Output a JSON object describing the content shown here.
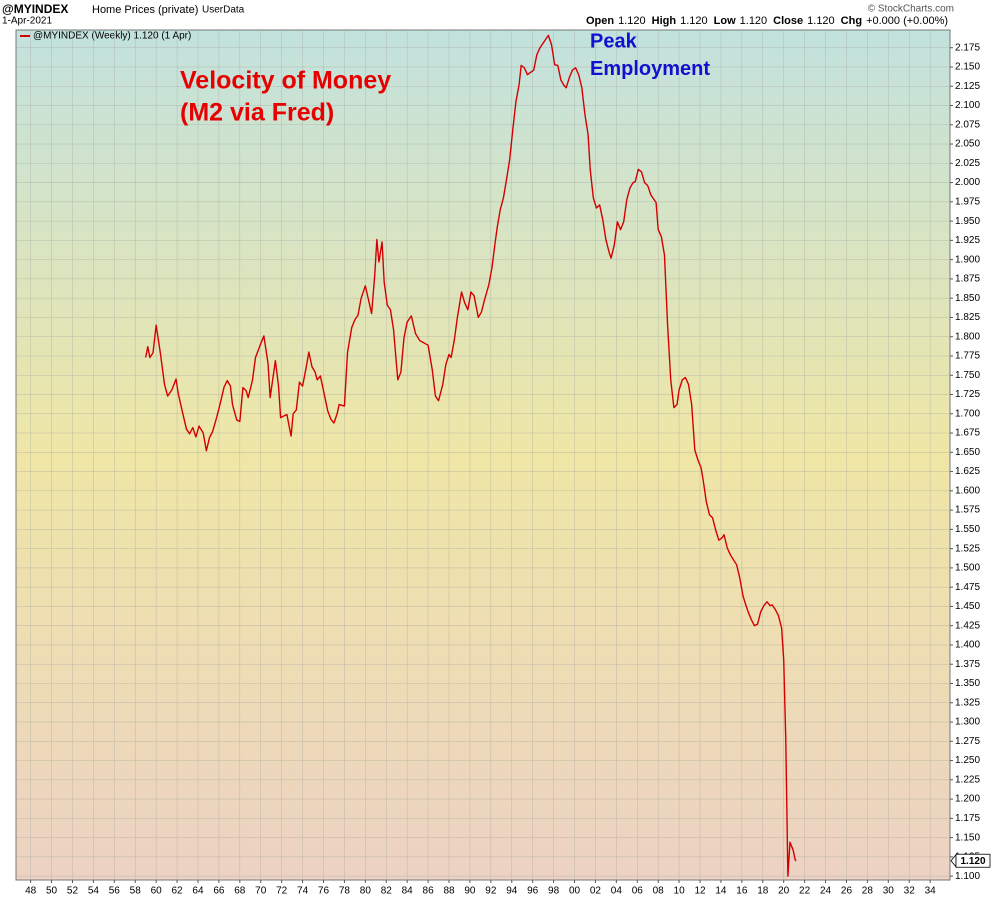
{
  "chart_data": {
    "type": "line",
    "title": "@MYINDEX",
    "subtitle": "Home Prices (private)",
    "source": "UserData",
    "date": "1-Apr-2021",
    "quote": [
      {
        "label": "Open",
        "value": "1.120"
      },
      {
        "label": "High",
        "value": "1.120"
      },
      {
        "label": "Low",
        "value": "1.120"
      },
      {
        "label": "Close",
        "value": "1.120"
      },
      {
        "label": "Chg",
        "value": "+0.000 (+0.00%)"
      }
    ],
    "credit": "© StockCharts.com",
    "last_value_label": "1.120",
    "annotations": [
      {
        "lines": [
          "Velocity of Money",
          "(M2 via Fred)"
        ],
        "color": "#e60000"
      },
      {
        "lines": [
          "Peak",
          "Employment"
        ],
        "color": "#1010d0"
      }
    ],
    "grid": true,
    "xlim": [
      1946.6,
      2035.9
    ],
    "ylim": [
      1.095,
      2.198
    ],
    "xticks": [
      {
        "value": 1948,
        "label": "48"
      },
      {
        "value": 1950,
        "label": "50"
      },
      {
        "value": 1952,
        "label": "52"
      },
      {
        "value": 1954,
        "label": "54"
      },
      {
        "value": 1956,
        "label": "56"
      },
      {
        "value": 1958,
        "label": "58"
      },
      {
        "value": 1960,
        "label": "60"
      },
      {
        "value": 1962,
        "label": "62"
      },
      {
        "value": 1964,
        "label": "64"
      },
      {
        "value": 1966,
        "label": "66"
      },
      {
        "value": 1968,
        "label": "68"
      },
      {
        "value": 1970,
        "label": "70"
      },
      {
        "value": 1972,
        "label": "72"
      },
      {
        "value": 1974,
        "label": "74"
      },
      {
        "value": 1976,
        "label": "76"
      },
      {
        "value": 1978,
        "label": "78"
      },
      {
        "value": 1980,
        "label": "80"
      },
      {
        "value": 1982,
        "label": "82"
      },
      {
        "value": 1984,
        "label": "84"
      },
      {
        "value": 1986,
        "label": "86"
      },
      {
        "value": 1988,
        "label": "88"
      },
      {
        "value": 1990,
        "label": "90"
      },
      {
        "value": 1992,
        "label": "92"
      },
      {
        "value": 1994,
        "label": "94"
      },
      {
        "value": 1996,
        "label": "96"
      },
      {
        "value": 1998,
        "label": "98"
      },
      {
        "value": 2000,
        "label": "00"
      },
      {
        "value": 2002,
        "label": "02"
      },
      {
        "value": 2004,
        "label": "04"
      },
      {
        "value": 2006,
        "label": "06"
      },
      {
        "value": 2008,
        "label": "08"
      },
      {
        "value": 2010,
        "label": "10"
      },
      {
        "value": 2012,
        "label": "12"
      },
      {
        "value": 2014,
        "label": "14"
      },
      {
        "value": 2016,
        "label": "16"
      },
      {
        "value": 2018,
        "label": "18"
      },
      {
        "value": 2020,
        "label": "20"
      },
      {
        "value": 2022,
        "label": "22"
      },
      {
        "value": 2024,
        "label": "24"
      },
      {
        "value": 2026,
        "label": "26"
      },
      {
        "value": 2028,
        "label": "28"
      },
      {
        "value": 2030,
        "label": "30"
      },
      {
        "value": 2032,
        "label": "32"
      },
      {
        "value": 2034,
        "label": "34"
      }
    ],
    "yticks": [
      {
        "value": 1.1,
        "label": "1.100"
      },
      {
        "value": 1.125,
        "label": "1.125"
      },
      {
        "value": 1.15,
        "label": "1.150"
      },
      {
        "value": 1.175,
        "label": "1.175"
      },
      {
        "value": 1.2,
        "label": "1.200"
      },
      {
        "value": 1.225,
        "label": "1.225"
      },
      {
        "value": 1.25,
        "label": "1.250"
      },
      {
        "value": 1.275,
        "label": "1.275"
      },
      {
        "value": 1.3,
        "label": "1.300"
      },
      {
        "value": 1.325,
        "label": "1.325"
      },
      {
        "value": 1.35,
        "label": "1.350"
      },
      {
        "value": 1.375,
        "label": "1.375"
      },
      {
        "value": 1.4,
        "label": "1.400"
      },
      {
        "value": 1.425,
        "label": "1.425"
      },
      {
        "value": 1.45,
        "label": "1.450"
      },
      {
        "value": 1.475,
        "label": "1.475"
      },
      {
        "value": 1.5,
        "label": "1.500"
      },
      {
        "value": 1.525,
        "label": "1.525"
      },
      {
        "value": 1.55,
        "label": "1.550"
      },
      {
        "value": 1.575,
        "label": "1.575"
      },
      {
        "value": 1.6,
        "label": "1.600"
      },
      {
        "value": 1.625,
        "label": "1.625"
      },
      {
        "value": 1.65,
        "label": "1.650"
      },
      {
        "value": 1.675,
        "label": "1.675"
      },
      {
        "value": 1.7,
        "label": "1.700"
      },
      {
        "value": 1.725,
        "label": "1.725"
      },
      {
        "value": 1.75,
        "label": "1.750"
      },
      {
        "value": 1.775,
        "label": "1.775"
      },
      {
        "value": 1.8,
        "label": "1.800"
      },
      {
        "value": 1.825,
        "label": "1.825"
      },
      {
        "value": 1.85,
        "label": "1.850"
      },
      {
        "value": 1.875,
        "label": "1.875"
      },
      {
        "value": 1.9,
        "label": "1.900"
      },
      {
        "value": 1.925,
        "label": "1.925"
      },
      {
        "value": 1.95,
        "label": "1.950"
      },
      {
        "value": 1.975,
        "label": "1.975"
      },
      {
        "value": 2.0,
        "label": "2.000"
      },
      {
        "value": 2.025,
        "label": "2.025"
      },
      {
        "value": 2.05,
        "label": "2.050"
      },
      {
        "value": 2.075,
        "label": "2.075"
      },
      {
        "value": 2.1,
        "label": "2.100"
      },
      {
        "value": 2.125,
        "label": "2.125"
      },
      {
        "value": 2.15,
        "label": "2.150"
      },
      {
        "value": 2.175,
        "label": "2.175"
      }
    ],
    "series": [
      {
        "name": "@MYINDEX (Weekly) 1.120 (1 Apr)",
        "color": "#d40000",
        "x": [
          1959.0,
          1959.2,
          1959.4,
          1959.7,
          1960.0,
          1960.4,
          1960.8,
          1961.1,
          1961.5,
          1961.9,
          1962.1,
          1962.5,
          1962.9,
          1963.2,
          1963.5,
          1963.8,
          1964.1,
          1964.5,
          1964.8,
          1965.1,
          1965.4,
          1965.8,
          1966.1,
          1966.5,
          1966.8,
          1967.1,
          1967.3,
          1967.7,
          1968.0,
          1968.3,
          1968.6,
          1968.8,
          1969.2,
          1969.5,
          1970.0,
          1970.3,
          1970.7,
          1970.9,
          1971.4,
          1971.7,
          1971.9,
          1972.5,
          1972.9,
          1973.1,
          1973.4,
          1973.7,
          1974.0,
          1974.3,
          1974.6,
          1974.9,
          1975.2,
          1975.4,
          1975.7,
          1976.0,
          1976.4,
          1976.7,
          1977.0,
          1977.3,
          1977.5,
          1978.0,
          1978.3,
          1978.7,
          1979.0,
          1979.3,
          1979.6,
          1980.0,
          1980.3,
          1980.6,
          1980.9,
          1981.1,
          1981.3,
          1981.6,
          1981.8,
          1982.1,
          1982.4,
          1982.7,
          1983.1,
          1983.4,
          1983.7,
          1984.0,
          1984.4,
          1984.8,
          1985.2,
          1985.6,
          1986.0,
          1986.4,
          1986.7,
          1987.0,
          1987.4,
          1987.7,
          1988.0,
          1988.2,
          1988.5,
          1988.8,
          1989.2,
          1989.5,
          1989.8,
          1990.1,
          1990.4,
          1990.8,
          1991.1,
          1991.4,
          1991.8,
          1992.1,
          1992.4,
          1992.6,
          1992.9,
          1993.2,
          1993.5,
          1993.8,
          1994.1,
          1994.4,
          1994.7,
          1994.9,
          1995.2,
          1995.5,
          1996.1,
          1996.4,
          1996.7,
          1997.2,
          1997.5,
          1997.8,
          1998.1,
          1998.4,
          1998.7,
          1999.0,
          1999.2,
          1999.5,
          1999.8,
          2000.1,
          2000.4,
          2000.7,
          2001.0,
          2001.3,
          2001.5,
          2001.8,
          2002.1,
          2002.4,
          2002.7,
          2003.0,
          2003.3,
          2003.5,
          2003.8,
          2004.1,
          2004.4,
          2004.7,
          2005.0,
          2005.3,
          2005.6,
          2005.8,
          2006.1,
          2006.4,
          2006.7,
          2007.0,
          2007.3,
          2007.6,
          2007.8,
          2008.0,
          2008.3,
          2008.6,
          2008.9,
          2009.2,
          2009.5,
          2009.8,
          2010.0,
          2010.3,
          2010.6,
          2010.9,
          2011.2,
          2011.5,
          2011.8,
          2012.1,
          2012.3,
          2012.6,
          2012.9,
          2013.2,
          2013.5,
          2013.8,
          2014.1,
          2014.3,
          2014.6,
          2014.9,
          2015.5,
          2015.8,
          2016.1,
          2016.4,
          2016.6,
          2016.9,
          2017.2,
          2017.5,
          2017.8,
          2018.1,
          2018.4,
          2018.7,
          2018.9,
          2019.2,
          2019.5,
          2019.8,
          2020.0,
          2020.2,
          2020.4,
          2020.6,
          2020.9,
          2021.1,
          2021.2
        ],
        "values": [
          1.773,
          1.787,
          1.773,
          1.779,
          1.815,
          1.779,
          1.738,
          1.723,
          1.731,
          1.745,
          1.727,
          1.703,
          1.68,
          1.674,
          1.682,
          1.67,
          1.684,
          1.675,
          1.652,
          1.669,
          1.677,
          1.696,
          1.712,
          1.735,
          1.743,
          1.736,
          1.712,
          1.692,
          1.69,
          1.734,
          1.73,
          1.721,
          1.743,
          1.773,
          1.791,
          1.801,
          1.765,
          1.721,
          1.769,
          1.736,
          1.695,
          1.699,
          1.671,
          1.7,
          1.705,
          1.741,
          1.736,
          1.757,
          1.78,
          1.761,
          1.754,
          1.744,
          1.749,
          1.73,
          1.704,
          1.693,
          1.688,
          1.7,
          1.712,
          1.71,
          1.78,
          1.812,
          1.822,
          1.828,
          1.85,
          1.866,
          1.848,
          1.83,
          1.88,
          1.926,
          1.897,
          1.923,
          1.871,
          1.841,
          1.835,
          1.809,
          1.744,
          1.754,
          1.799,
          1.819,
          1.827,
          1.804,
          1.795,
          1.792,
          1.789,
          1.757,
          1.723,
          1.717,
          1.738,
          1.764,
          1.777,
          1.773,
          1.795,
          1.825,
          1.858,
          1.844,
          1.835,
          1.858,
          1.853,
          1.825,
          1.832,
          1.848,
          1.867,
          1.889,
          1.921,
          1.941,
          1.965,
          1.98,
          2.004,
          2.03,
          2.069,
          2.105,
          2.127,
          2.152,
          2.149,
          2.14,
          2.146,
          2.166,
          2.175,
          2.185,
          2.191,
          2.179,
          2.153,
          2.152,
          2.133,
          2.126,
          2.123,
          2.136,
          2.146,
          2.149,
          2.14,
          2.123,
          2.088,
          2.062,
          2.017,
          1.98,
          1.967,
          1.971,
          1.952,
          1.926,
          1.91,
          1.902,
          1.919,
          1.949,
          1.939,
          1.949,
          1.978,
          1.993,
          2.0,
          2.001,
          2.017,
          2.014,
          2.0,
          1.996,
          1.984,
          1.978,
          1.974,
          1.939,
          1.93,
          1.906,
          1.815,
          1.744,
          1.708,
          1.712,
          1.731,
          1.744,
          1.747,
          1.738,
          1.712,
          1.653,
          1.64,
          1.63,
          1.614,
          1.586,
          1.569,
          1.565,
          1.549,
          1.536,
          1.539,
          1.543,
          1.526,
          1.517,
          1.504,
          1.487,
          1.464,
          1.451,
          1.443,
          1.433,
          1.425,
          1.427,
          1.443,
          1.451,
          1.456,
          1.451,
          1.452,
          1.446,
          1.438,
          1.422,
          1.381,
          1.277,
          1.1,
          1.144,
          1.134,
          1.121,
          1.12
        ]
      }
    ]
  }
}
